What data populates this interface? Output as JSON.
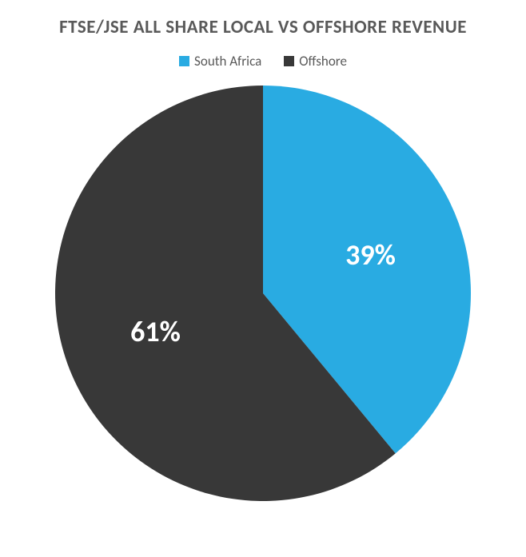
{
  "chart": {
    "type": "pie",
    "title": "FTSE/JSE ALL SHARE LOCAL VS OFFSHORE REVENUE",
    "title_fontsize": 23,
    "title_color": "#595959",
    "background_color": "#ffffff",
    "legend": {
      "position": "top",
      "label_fontsize": 17,
      "label_color": "#595959"
    },
    "slices": [
      {
        "label": "South Africa",
        "value": 39,
        "display": "39%",
        "color": "#29abe2"
      },
      {
        "label": "Offshore",
        "value": 61,
        "display": "61%",
        "color": "#383838"
      }
    ],
    "slice_label_fontsize": 36,
    "slice_label_color": "#ffffff",
    "radius": 260,
    "svg_size": 520,
    "start_angle_deg": -90
  }
}
